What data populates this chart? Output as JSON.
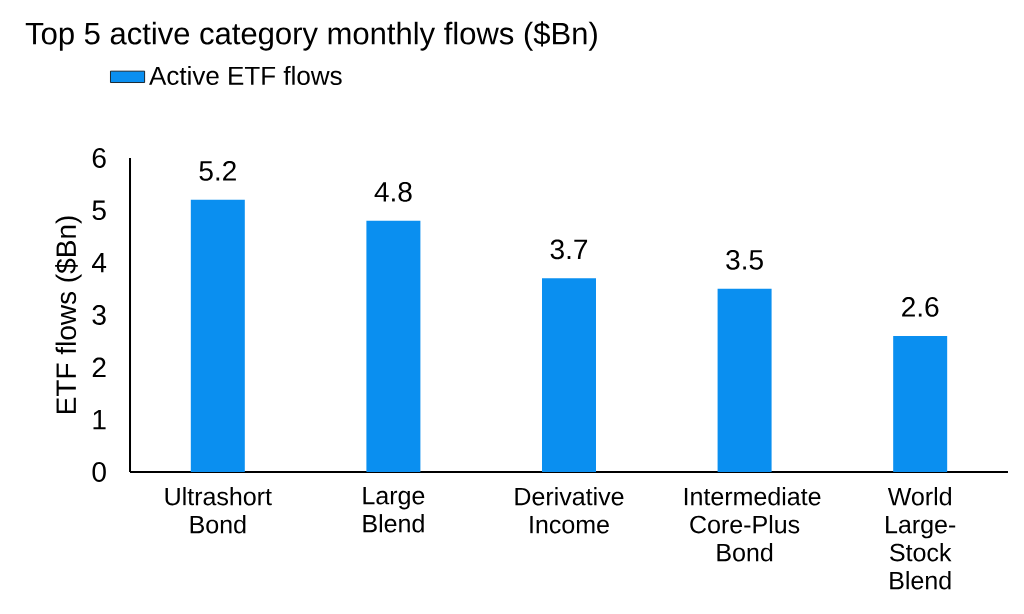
{
  "chart_data": {
    "type": "bar",
    "title": "Top 5 active category monthly flows ($Bn)",
    "ylabel": "ETF flows ($Bn)",
    "categories": [
      "Ultrashort Bond",
      "Large Blend",
      "Derivative Income",
      "Intermediate Core-Plus Bond",
      "World Large-Stock Blend"
    ],
    "series": [
      {
        "name": "Active ETF flows",
        "color": "#0a8ff0",
        "values": [
          5.2,
          4.8,
          3.7,
          3.5,
          2.6
        ]
      }
    ],
    "ylim": [
      0,
      6
    ],
    "yticks": [
      0,
      1,
      2,
      3,
      4,
      5,
      6
    ],
    "data_labels": true,
    "legend": "top left",
    "grid": false
  }
}
